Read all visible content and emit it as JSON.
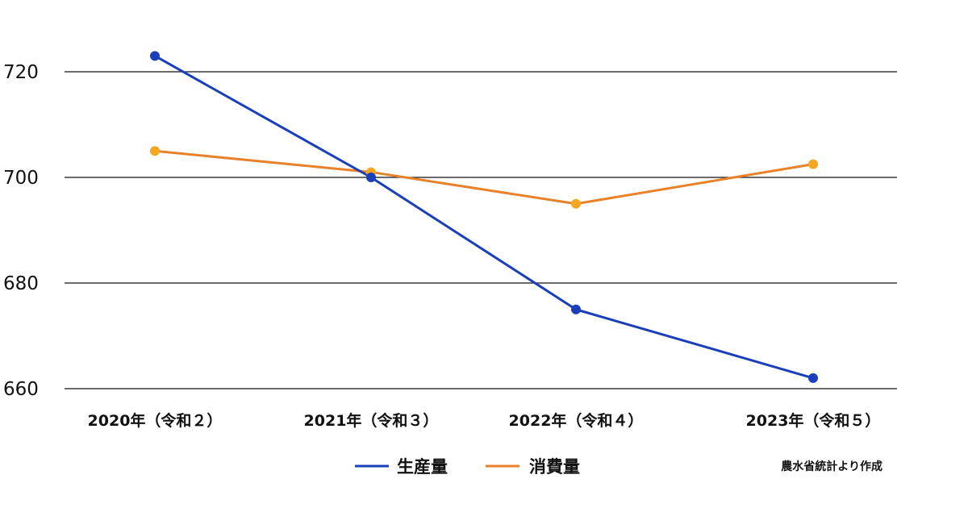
{
  "chart_data": {
    "type": "line",
    "categories": [
      "2020年（令和２）",
      "2021年（令和３）",
      "2022年（令和４）",
      "2023年（令和５）"
    ],
    "series": [
      {
        "name": "生産量",
        "color": "#1a3fb8",
        "values": [
          723,
          700,
          675,
          662
        ]
      },
      {
        "name": "消費量",
        "color": "#e8822a",
        "marker_color": "#f5a623",
        "values": [
          705,
          701,
          695,
          702.5
        ]
      }
    ],
    "yticks": [
      720,
      700,
      680,
      660
    ],
    "ylim": [
      660,
      720
    ],
    "grid": true,
    "legend_position": "bottom-center",
    "source_note": "農水省統計より作成"
  }
}
